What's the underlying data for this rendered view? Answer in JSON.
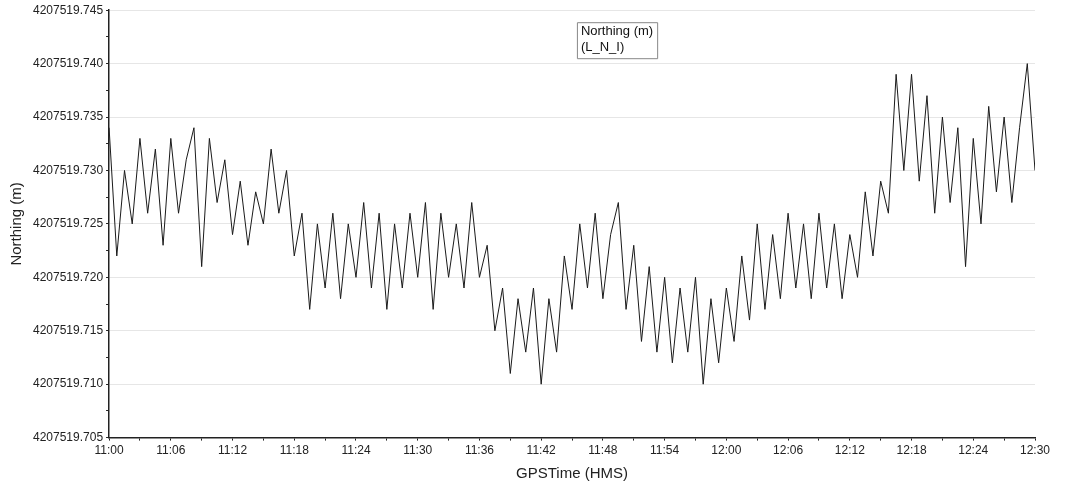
{
  "chart_data": {
    "type": "line",
    "xlabel": "GPSTime (HMS)",
    "ylabel": "Northing (m)",
    "xlim": [
      11,
      12.5
    ],
    "xticks": [
      {
        "value": 11,
        "label": "11:00"
      },
      {
        "value": 11.05,
        "label": null
      },
      {
        "value": 11.1,
        "label": "11:06"
      },
      {
        "value": 11.15,
        "label": null
      },
      {
        "value": 11.2,
        "label": "11:12"
      },
      {
        "value": 11.25,
        "label": null
      },
      {
        "value": 11.3,
        "label": "11:18"
      },
      {
        "value": 11.35,
        "label": null
      },
      {
        "value": 11.4,
        "label": "11:24"
      },
      {
        "value": 11.45,
        "label": null
      },
      {
        "value": 11.5,
        "label": "11:30"
      },
      {
        "value": 11.55,
        "label": null
      },
      {
        "value": 11.6,
        "label": "11:36"
      },
      {
        "value": 11.65,
        "label": null
      },
      {
        "value": 11.7,
        "label": "11:42"
      },
      {
        "value": 11.75,
        "label": null
      },
      {
        "value": 11.8,
        "label": "11:48"
      },
      {
        "value": 11.85,
        "label": null
      },
      {
        "value": 11.9,
        "label": "11:54"
      },
      {
        "value": 11.95,
        "label": null
      },
      {
        "value": 12,
        "label": "12:00"
      },
      {
        "value": 12.05,
        "label": null
      },
      {
        "value": 12.1,
        "label": "12:06"
      },
      {
        "value": 12.15,
        "label": null
      },
      {
        "value": 12.2,
        "label": "12:12"
      },
      {
        "value": 12.25,
        "label": null
      },
      {
        "value": 12.3,
        "label": "12:18"
      },
      {
        "value": 12.35,
        "label": null
      },
      {
        "value": 12.4,
        "label": "12:24"
      },
      {
        "value": 12.45,
        "label": null
      },
      {
        "value": 12.5,
        "label": "12:30"
      }
    ],
    "ylim": [
      4207519.705,
      4207519.745
    ],
    "yticks": [
      {
        "value": 4207519.705,
        "label": "4207519.705"
      },
      {
        "value": 4207519.7075,
        "label": null
      },
      {
        "value": 4207519.71,
        "label": "4207519.710"
      },
      {
        "value": 4207519.7125,
        "label": null
      },
      {
        "value": 4207519.715,
        "label": "4207519.715"
      },
      {
        "value": 4207519.7175,
        "label": null
      },
      {
        "value": 4207519.72,
        "label": "4207519.720"
      },
      {
        "value": 4207519.7225,
        "label": null
      },
      {
        "value": 4207519.725,
        "label": "4207519.725"
      },
      {
        "value": 4207519.7275,
        "label": null
      },
      {
        "value": 4207519.73,
        "label": "4207519.730"
      },
      {
        "value": 4207519.7325,
        "label": null
      },
      {
        "value": 4207519.735,
        "label": "4207519.735"
      },
      {
        "value": 4207519.7375,
        "label": null
      },
      {
        "value": 4207519.74,
        "label": "4207519.740"
      },
      {
        "value": 4207519.7425,
        "label": null
      },
      {
        "value": 4207519.745,
        "label": "4207519.745"
      }
    ],
    "grid": "y",
    "legend": "top",
    "marker": "none",
    "line_style": "solid",
    "series": [
      {
        "name": "Northing (m)\n(L_N_I)",
        "color": "#1a1a1a",
        "x": [
          11,
          11.0125,
          11.025,
          11.0375,
          11.05,
          11.0625,
          11.075,
          11.0875,
          11.1,
          11.1125,
          11.125,
          11.1375,
          11.15,
          11.1625,
          11.175,
          11.1875,
          11.2,
          11.2125,
          11.225,
          11.2375,
          11.25,
          11.2625,
          11.275,
          11.2875,
          11.3,
          11.3125,
          11.325,
          11.3375,
          11.35,
          11.3625,
          11.375,
          11.3875,
          11.4,
          11.4125,
          11.425,
          11.4375,
          11.45,
          11.4625,
          11.475,
          11.4875,
          11.5,
          11.5125,
          11.525,
          11.5375,
          11.55,
          11.5625,
          11.575,
          11.5875,
          11.6,
          11.6125,
          11.625,
          11.6375,
          11.65,
          11.6625,
          11.675,
          11.6875,
          11.7,
          11.7125,
          11.725,
          11.7375,
          11.75,
          11.7625,
          11.775,
          11.7875,
          11.8,
          11.8125,
          11.825,
          11.8375,
          11.85,
          11.8625,
          11.875,
          11.8875,
          11.9,
          11.9125,
          11.925,
          11.9375,
          11.95,
          11.9625,
          11.975,
          11.9875,
          12,
          12.0125,
          12.025,
          12.0375,
          12.05,
          12.0625,
          12.075,
          12.0875,
          12.1,
          12.1125,
          12.125,
          12.1375,
          12.15,
          12.1625,
          12.175,
          12.1875,
          12.2,
          12.2125,
          12.225,
          12.2375,
          12.25,
          12.2625,
          12.275,
          12.2875,
          12.3,
          12.3125,
          12.325,
          12.3375,
          12.35,
          12.3625,
          12.375,
          12.3875,
          12.4,
          12.4125,
          12.425,
          12.4375,
          12.45,
          12.4625,
          12.475,
          12.4875,
          12.5
        ],
        "values": [
          4207519.734,
          4207519.722,
          4207519.73,
          4207519.725,
          4207519.733,
          4207519.726,
          4207519.732,
          4207519.723,
          4207519.733,
          4207519.726,
          4207519.731,
          4207519.734,
          4207519.721,
          4207519.733,
          4207519.727,
          4207519.731,
          4207519.724,
          4207519.729,
          4207519.723,
          4207519.728,
          4207519.725,
          4207519.732,
          4207519.726,
          4207519.73,
          4207519.722,
          4207519.726,
          4207519.717,
          4207519.725,
          4207519.719,
          4207519.726,
          4207519.718,
          4207519.725,
          4207519.72,
          4207519.727,
          4207519.719,
          4207519.726,
          4207519.717,
          4207519.725,
          4207519.719,
          4207519.726,
          4207519.72,
          4207519.727,
          4207519.717,
          4207519.726,
          4207519.72,
          4207519.725,
          4207519.719,
          4207519.727,
          4207519.72,
          4207519.723,
          4207519.715,
          4207519.719,
          4207519.711,
          4207519.718,
          4207519.713,
          4207519.719,
          4207519.71,
          4207519.718,
          4207519.713,
          4207519.722,
          4207519.717,
          4207519.725,
          4207519.719,
          4207519.726,
          4207519.718,
          4207519.724,
          4207519.727,
          4207519.717,
          4207519.723,
          4207519.714,
          4207519.721,
          4207519.713,
          4207519.72,
          4207519.712,
          4207519.719,
          4207519.713,
          4207519.72,
          4207519.71,
          4207519.718,
          4207519.712,
          4207519.719,
          4207519.714,
          4207519.722,
          4207519.716,
          4207519.725,
          4207519.717,
          4207519.724,
          4207519.718,
          4207519.726,
          4207519.719,
          4207519.725,
          4207519.718,
          4207519.726,
          4207519.719,
          4207519.725,
          4207519.718,
          4207519.724,
          4207519.72,
          4207519.728,
          4207519.722,
          4207519.729,
          4207519.726,
          4207519.739,
          4207519.73,
          4207519.739,
          4207519.729,
          4207519.737,
          4207519.726,
          4207519.735,
          4207519.727,
          4207519.734,
          4207519.721,
          4207519.733,
          4207519.725,
          4207519.736,
          4207519.728,
          4207519.735,
          4207519.727,
          4207519.734,
          4207519.74,
          4207519.73
        ]
      }
    ]
  }
}
